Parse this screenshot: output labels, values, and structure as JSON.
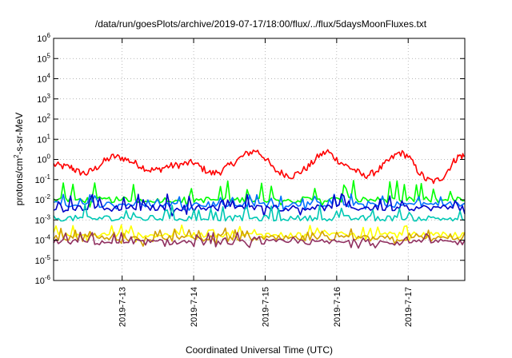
{
  "chart_data": {
    "type": "line",
    "title": "/data/run/goesPlots/archive/2019-07-17/18:00/flux/../flux/5daysMoonFluxes.txt",
    "xlabel": "Coordinated Universal Time (UTC)",
    "ylabel": {
      "pre": "protons/cm",
      "sup": "2",
      "post": "-s-sr-MeV"
    },
    "yscale": "log",
    "ylim": [
      1e-06,
      1000000.0
    ],
    "xlim": [
      "2019-07-12T01:00",
      "2019-07-17T19:00"
    ],
    "grid": true,
    "yticks": [
      {
        "value": 1e-06,
        "base": "10",
        "exp": "-6"
      },
      {
        "value": 1e-05,
        "base": "10",
        "exp": "-5"
      },
      {
        "value": 0.0001,
        "base": "10",
        "exp": "-4"
      },
      {
        "value": 0.001,
        "base": "10",
        "exp": "-3"
      },
      {
        "value": 0.01,
        "base": "10",
        "exp": "-2"
      },
      {
        "value": 0.1,
        "base": "10",
        "exp": "-1"
      },
      {
        "value": 1.0,
        "base": "10",
        "exp": "0"
      },
      {
        "value": 10.0,
        "base": "10",
        "exp": "1"
      },
      {
        "value": 100.0,
        "base": "10",
        "exp": "2"
      },
      {
        "value": 1000.0,
        "base": "10",
        "exp": "3"
      },
      {
        "value": 10000.0,
        "base": "10",
        "exp": "4"
      },
      {
        "value": 100000.0,
        "base": "10",
        "exp": "5"
      },
      {
        "value": 1000000.0,
        "base": "10",
        "exp": "6"
      }
    ],
    "xticks": [
      {
        "value": "2019-07-13T00:00",
        "label": "2019-7-13"
      },
      {
        "value": "2019-07-14T00:00",
        "label": "2019-7-14"
      },
      {
        "value": "2019-07-15T00:00",
        "label": "2019-7-15"
      },
      {
        "value": "2019-07-16T00:00",
        "label": "2019-7-16"
      },
      {
        "value": "2019-07-17T00:00",
        "label": "2019-7-17"
      }
    ],
    "series": [
      {
        "color": "#ff0000",
        "min": 0.05,
        "max": 3.5,
        "points": [
          [
            "2019-07-12T01:00",
            0.55
          ],
          [
            "2019-07-12T04:00",
            0.45
          ],
          [
            "2019-07-12T07:00",
            0.4
          ],
          [
            "2019-07-12T09:00",
            0.25
          ],
          [
            "2019-07-12T12:00",
            0.2
          ],
          [
            "2019-07-12T15:00",
            0.35
          ],
          [
            "2019-07-12T18:00",
            0.8
          ],
          [
            "2019-07-12T21:00",
            1.4
          ],
          [
            "2019-07-13T00:00",
            1.2
          ],
          [
            "2019-07-13T03:00",
            0.8
          ],
          [
            "2019-07-13T06:00",
            0.5
          ],
          [
            "2019-07-13T09:00",
            0.3
          ],
          [
            "2019-07-13T12:00",
            0.3
          ],
          [
            "2019-07-13T15:00",
            0.45
          ],
          [
            "2019-07-13T18:00",
            0.5
          ],
          [
            "2019-07-13T21:00",
            0.6
          ],
          [
            "2019-07-14T00:00",
            0.7
          ],
          [
            "2019-07-14T03:00",
            0.35
          ],
          [
            "2019-07-14T06:00",
            0.2
          ],
          [
            "2019-07-14T09:00",
            0.25
          ],
          [
            "2019-07-14T12:00",
            0.5
          ],
          [
            "2019-07-14T15:00",
            1.0
          ],
          [
            "2019-07-14T18:00",
            2.0
          ],
          [
            "2019-07-14T21:00",
            2.8
          ],
          [
            "2019-07-15T00:00",
            1.2
          ],
          [
            "2019-07-15T03:00",
            0.3
          ],
          [
            "2019-07-15T06:00",
            0.2
          ],
          [
            "2019-07-15T09:00",
            0.15
          ],
          [
            "2019-07-15T12:00",
            0.25
          ],
          [
            "2019-07-15T15:00",
            0.5
          ],
          [
            "2019-07-15T18:00",
            1.5
          ],
          [
            "2019-07-15T21:00",
            2.5
          ],
          [
            "2019-07-16T00:00",
            1.0
          ],
          [
            "2019-07-16T03:00",
            0.5
          ],
          [
            "2019-07-16T06:00",
            0.3
          ],
          [
            "2019-07-16T09:00",
            0.15
          ],
          [
            "2019-07-16T12:00",
            0.2
          ],
          [
            "2019-07-16T15:00",
            0.4
          ],
          [
            "2019-07-16T18:00",
            1.0
          ],
          [
            "2019-07-16T21:00",
            2.2
          ],
          [
            "2019-07-17T00:00",
            1.5
          ],
          [
            "2019-07-17T03:00",
            0.3
          ],
          [
            "2019-07-17T06:00",
            0.1
          ],
          [
            "2019-07-17T09:00",
            0.08
          ],
          [
            "2019-07-17T12:00",
            0.15
          ],
          [
            "2019-07-17T15:00",
            0.7
          ],
          [
            "2019-07-17T17:00",
            1.5
          ],
          [
            "2019-07-17T19:00",
            1.5
          ]
        ]
      },
      {
        "color": "#00ff00",
        "min": 0.004,
        "max": 0.09,
        "base": 0.01
      },
      {
        "color": "#0070ff",
        "min": 0.003,
        "max": 0.02,
        "base": 0.006
      },
      {
        "color": "#0000c8",
        "min": 0.0015,
        "max": 0.02,
        "base": 0.004
      },
      {
        "color": "#00c8b4",
        "min": 0.0009,
        "max": 0.006,
        "base": 0.0012
      },
      {
        "color": "#ffff00",
        "min": 8e-05,
        "max": 0.0006,
        "base": 0.00018
      },
      {
        "color": "#d2a000",
        "min": 5e-05,
        "max": 0.0004,
        "base": 0.00012
      },
      {
        "color": "#903060",
        "min": 4e-05,
        "max": 0.00025,
        "base": 8e-05
      }
    ]
  }
}
